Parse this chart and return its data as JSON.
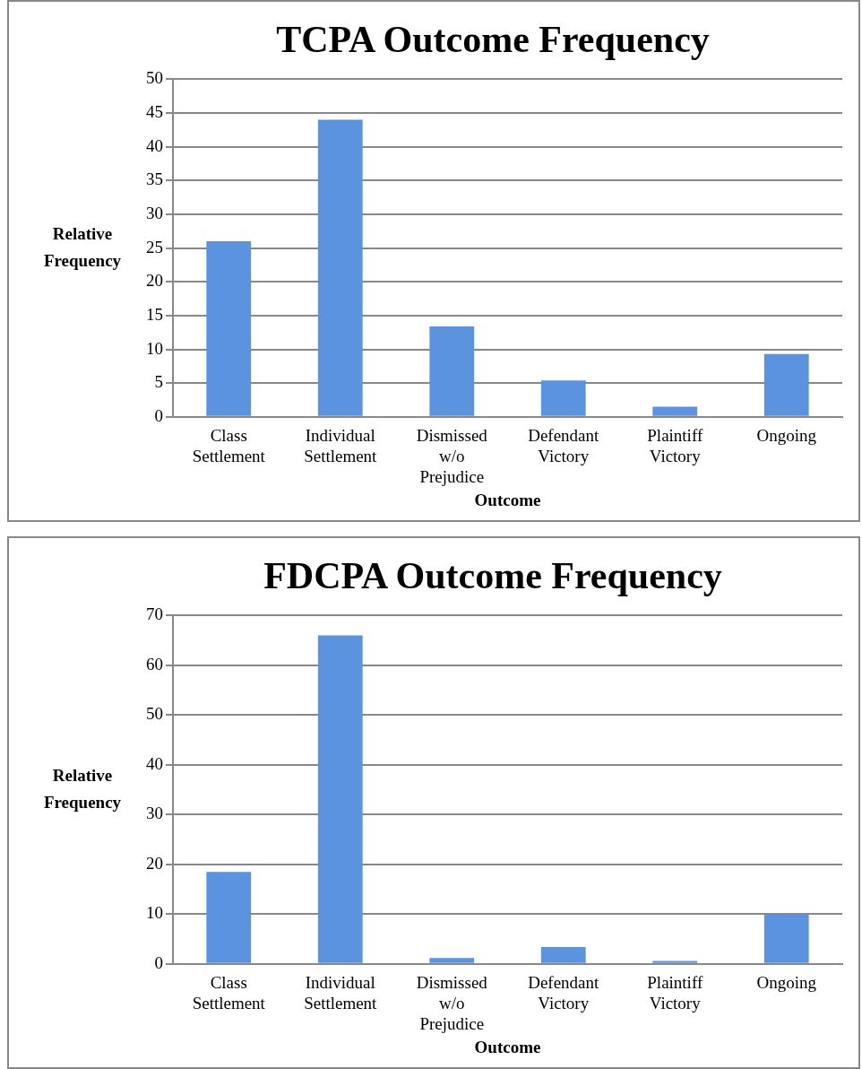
{
  "chart_data": [
    {
      "type": "bar",
      "title": "TCPA Outcome Frequency",
      "xlabel": "Outcome",
      "ylabel": "Relative Frequency",
      "categories": [
        "Class Settlement",
        "Individual Settlement",
        "Dismissed w/o Prejudice",
        "Defendant Victory",
        "Plaintiff Victory",
        "Ongoing"
      ],
      "values": [
        26,
        44,
        13.4,
        5.4,
        1.5,
        9.3
      ],
      "color": "#5b93e0",
      "ylim": [
        0,
        50
      ],
      "yticks": [
        0,
        5,
        10,
        15,
        20,
        25,
        30,
        35,
        40,
        45,
        50
      ],
      "grid": "y",
      "legend": false
    },
    {
      "type": "bar",
      "title": "FDCPA Outcome Frequency",
      "xlabel": "Outcome",
      "ylabel": "Relative Frequency",
      "categories": [
        "Class Settlement",
        "Individual Settlement",
        "Dismissed w/o Prejudice",
        "Defendant Victory",
        "Plaintiff Victory",
        "Ongoing"
      ],
      "values": [
        18.5,
        66,
        1.2,
        3.4,
        0.6,
        9.9
      ],
      "color": "#5b93e0",
      "ylim": [
        0,
        70
      ],
      "yticks": [
        0,
        10,
        20,
        30,
        40,
        50,
        60,
        70
      ],
      "grid": "y",
      "legend": false
    }
  ]
}
